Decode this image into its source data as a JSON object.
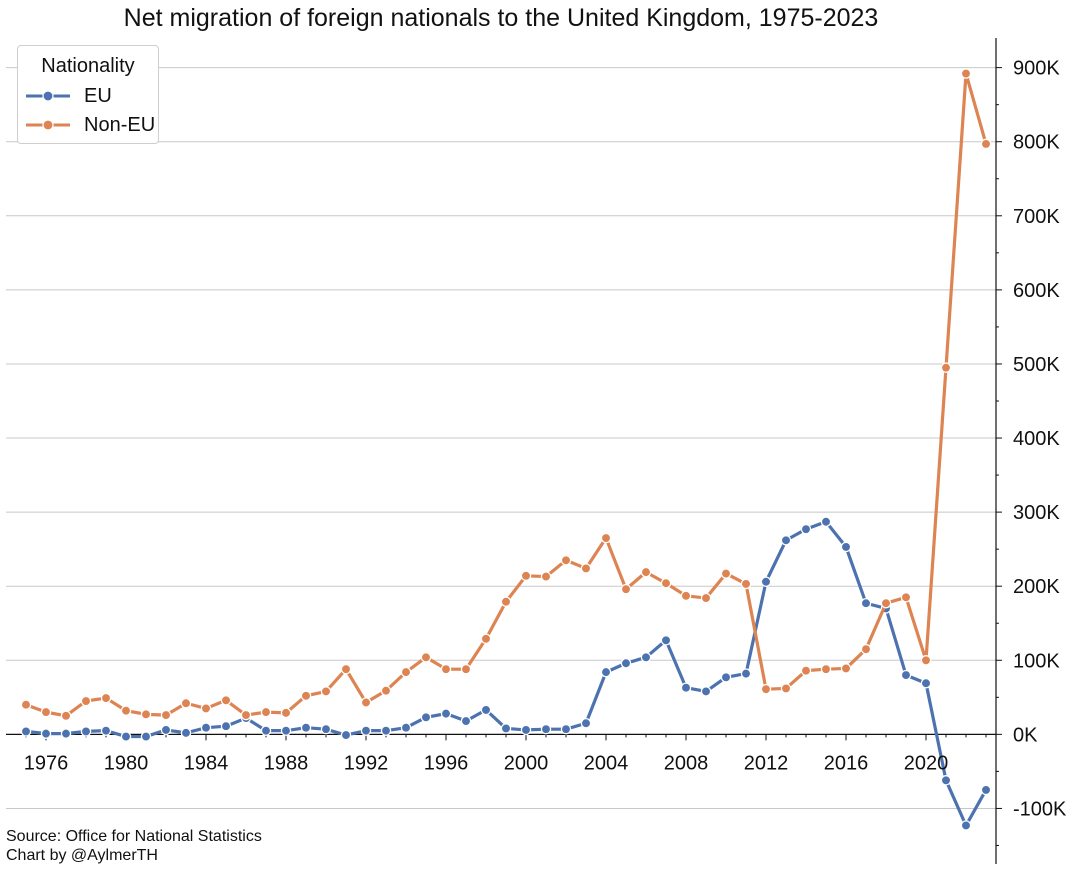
{
  "chart_data": {
    "type": "line",
    "title": "Net migration of foreign nationals to the United Kingdom, 1975-2023",
    "xlabel": "",
    "ylabel": "",
    "x": [
      1975,
      1976,
      1977,
      1978,
      1979,
      1980,
      1981,
      1982,
      1983,
      1984,
      1985,
      1986,
      1987,
      1988,
      1989,
      1990,
      1991,
      1992,
      1993,
      1994,
      1995,
      1996,
      1997,
      1998,
      1999,
      2000,
      2001,
      2002,
      2003,
      2004,
      2005,
      2006,
      2007,
      2008,
      2009,
      2010,
      2011,
      2012,
      2013,
      2014,
      2015,
      2016,
      2017,
      2018,
      2019,
      2020,
      2021,
      2022,
      2023
    ],
    "xlim": [
      1974,
      2023.5
    ],
    "ylim": [
      -175000,
      940000
    ],
    "x_ticks": [
      1976,
      1980,
      1984,
      1988,
      1992,
      1996,
      2000,
      2004,
      2008,
      2012,
      2016,
      2020
    ],
    "x_tick_labels": [
      "1976",
      "1980",
      "1984",
      "1988",
      "1992",
      "1996",
      "2000",
      "2004",
      "2008",
      "2012",
      "2016",
      "2020"
    ],
    "y_ticks": [
      -100000,
      0,
      100000,
      200000,
      300000,
      400000,
      500000,
      600000,
      700000,
      800000,
      900000
    ],
    "y_tick_labels": [
      "-100K",
      "0K",
      "100K",
      "200K",
      "300K",
      "400K",
      "500K",
      "600K",
      "700K",
      "800K",
      "900K"
    ],
    "y_axis_position": "right",
    "grid": "horizontal",
    "legend": {
      "title": "Nationality",
      "position": "top-left"
    },
    "series": [
      {
        "name": "EU",
        "color": "#4c72b0",
        "values": [
          4000,
          1000,
          1000,
          4000,
          5000,
          -3000,
          -3000,
          6000,
          2000,
          9000,
          11000,
          22000,
          5000,
          5000,
          9000,
          7000,
          -1000,
          5000,
          5000,
          9000,
          23000,
          28000,
          18000,
          33000,
          8000,
          6000,
          7000,
          7000,
          15000,
          84000,
          96000,
          104000,
          127000,
          63000,
          58000,
          77000,
          82000,
          206000,
          262000,
          277000,
          287000,
          253000,
          177000,
          170000,
          80000,
          69000,
          -62000,
          -123000,
          -75000
        ]
      },
      {
        "name": "Non-EU",
        "color": "#dd8452",
        "values": [
          40000,
          30000,
          25000,
          45000,
          49000,
          32000,
          27000,
          26000,
          42000,
          35000,
          46000,
          26000,
          30000,
          29000,
          52000,
          58000,
          88000,
          43000,
          59000,
          84000,
          104000,
          88000,
          88000,
          129000,
          179000,
          214000,
          213000,
          235000,
          224000,
          265000,
          196000,
          219000,
          204000,
          187000,
          184000,
          217000,
          203000,
          61000,
          62000,
          86000,
          88000,
          89000,
          115000,
          177000,
          185000,
          100000,
          495000,
          892000,
          797000
        ]
      }
    ]
  },
  "source_line": "Source: Office for National Statistics",
  "credit_line": "Chart by @AylmerTH"
}
